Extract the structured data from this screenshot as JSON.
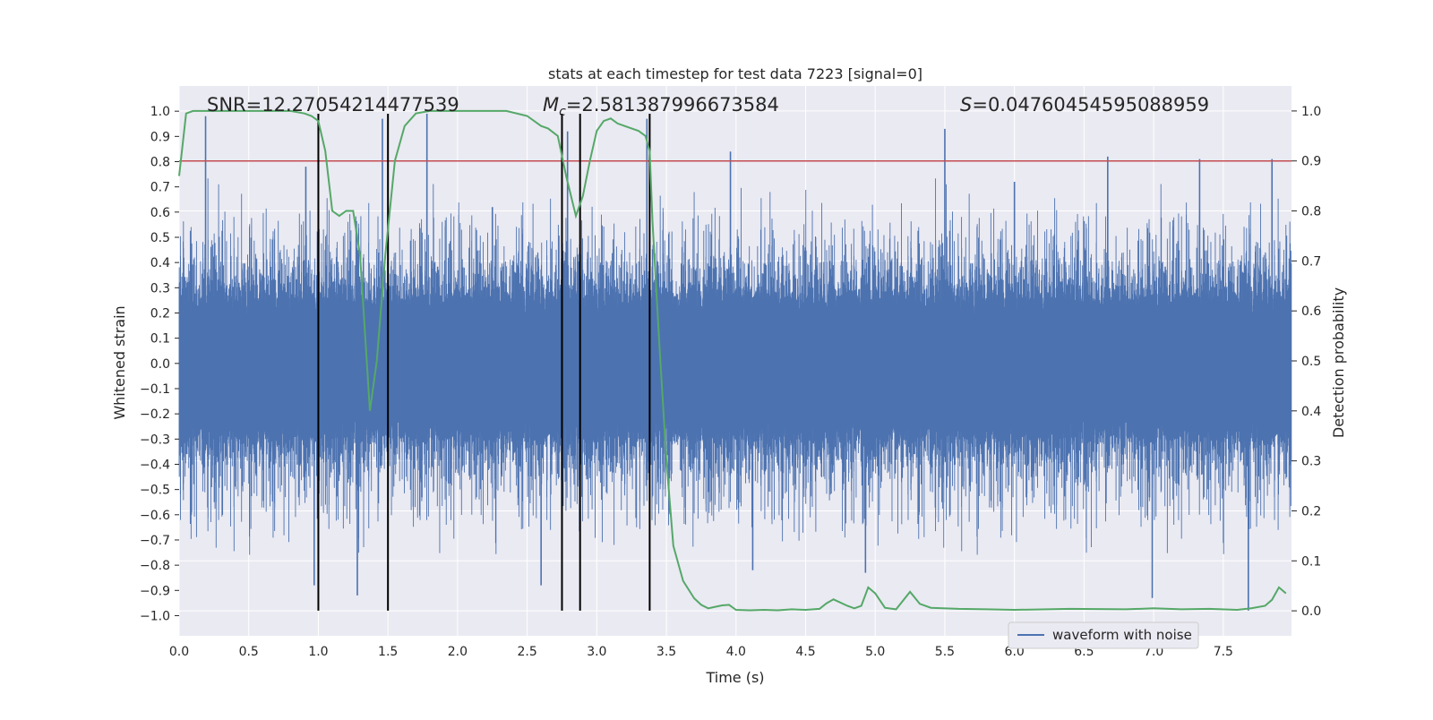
{
  "chart_data": {
    "type": "line",
    "title": "stats at each timestep for test data 7223 [signal=0]",
    "xlabel": "Time (s)",
    "ylabel": "Whitened strain",
    "y2label": "Detection probability",
    "xlim": [
      0.0,
      7.99
    ],
    "ylim": [
      -1.08,
      1.1
    ],
    "y2lim": [
      -0.05,
      1.05
    ],
    "xticks": [
      0.0,
      0.5,
      1.0,
      1.5,
      2.0,
      2.5,
      3.0,
      3.5,
      4.0,
      4.5,
      5.0,
      5.5,
      6.0,
      6.5,
      7.0,
      7.5
    ],
    "xtick_labels": [
      "0.0",
      "0.5",
      "1.0",
      "1.5",
      "2.0",
      "2.5",
      "3.0",
      "3.5",
      "4.0",
      "4.5",
      "5.0",
      "5.5",
      "6.0",
      "6.5",
      "7.0",
      "7.5"
    ],
    "yticks": [
      1.0,
      0.9,
      0.8,
      0.7,
      0.6,
      0.5,
      0.4,
      0.3,
      0.2,
      0.1,
      0.0,
      -0.1,
      -0.2,
      -0.3,
      -0.4,
      -0.5,
      -0.6,
      -0.7,
      -0.8,
      -0.9,
      -1.0
    ],
    "ytick_labels": [
      "1.0",
      "0.9",
      "0.8",
      "0.7",
      "0.6",
      "0.5",
      "0.4",
      "0.3",
      "0.2",
      "0.1",
      "0.0",
      "−0.1",
      "−0.2",
      "−0.3",
      "−0.4",
      "−0.5",
      "−0.6",
      "−0.7",
      "−0.8",
      "−0.9",
      "−1.0"
    ],
    "y2ticks": [
      1.0,
      0.9,
      0.8,
      0.7,
      0.6,
      0.5,
      0.4,
      0.3,
      0.2,
      0.1,
      0.0
    ],
    "y2tick_labels": [
      "1.0",
      "0.9",
      "0.8",
      "0.7",
      "0.6",
      "0.5",
      "0.4",
      "0.3",
      "0.2",
      "0.1",
      "0.0"
    ],
    "grid": true,
    "annotations": {
      "snr": "SNR=12.27054214477539",
      "mc_symbol": "M",
      "mc_sub": "c",
      "mc_value": "=2.581387996673584",
      "s_symbol": "S",
      "s_value": "=0.04760454595088959"
    },
    "legend": {
      "label": "waveform with noise",
      "position": "lower-right"
    },
    "colors": {
      "waveform": "#4c72b0",
      "probability": "#55a868",
      "threshold": "#c44e52",
      "markers": "#000000",
      "plot_bg": "#eaeaf2",
      "grid": "#ffffff",
      "text": "#262626"
    },
    "threshold": {
      "axis": "y2",
      "value": 0.9
    },
    "vertical_lines": [
      1.0,
      1.5,
      2.75,
      2.88,
      3.38
    ],
    "vertical_line_range": [
      -0.98,
      0.99
    ],
    "series": [
      {
        "name": "waveform with noise",
        "kind": "noise-band",
        "sample_count": 8000,
        "core_amplitude": 0.21,
        "envelope_high": 0.5,
        "envelope_low": -0.6,
        "spikes": [
          {
            "x": 0.19,
            "y": 0.98
          },
          {
            "x": 0.91,
            "y": 0.78
          },
          {
            "x": 0.97,
            "y": -0.88
          },
          {
            "x": 1.28,
            "y": -0.92
          },
          {
            "x": 1.46,
            "y": 0.97
          },
          {
            "x": 1.78,
            "y": 0.99
          },
          {
            "x": 2.25,
            "y": 0.62
          },
          {
            "x": 2.6,
            "y": -0.88
          },
          {
            "x": 2.79,
            "y": 0.92
          },
          {
            "x": 3.36,
            "y": 0.97
          },
          {
            "x": 4.12,
            "y": -0.82
          },
          {
            "x": 4.93,
            "y": -0.83
          },
          {
            "x": 5.5,
            "y": 0.93
          },
          {
            "x": 6.67,
            "y": 0.82
          },
          {
            "x": 6.99,
            "y": -0.93
          },
          {
            "x": 7.33,
            "y": 0.81
          },
          {
            "x": 7.68,
            "y": -0.98
          },
          {
            "x": 7.85,
            "y": 0.81
          },
          {
            "x": 6.0,
            "y": 0.72
          },
          {
            "x": 3.96,
            "y": 0.84
          }
        ]
      },
      {
        "name": "Detection probability",
        "axis": "y2",
        "x": [
          0.0,
          0.05,
          0.1,
          0.2,
          0.4,
          0.6,
          0.8,
          0.9,
          0.95,
          1.0,
          1.05,
          1.1,
          1.15,
          1.2,
          1.25,
          1.3,
          1.37,
          1.42,
          1.48,
          1.55,
          1.62,
          1.7,
          1.8,
          2.0,
          2.2,
          2.35,
          2.5,
          2.6,
          2.65,
          2.72,
          2.78,
          2.85,
          2.9,
          2.95,
          3.0,
          3.05,
          3.1,
          3.15,
          3.2,
          3.3,
          3.35,
          3.38,
          3.4,
          3.45,
          3.5,
          3.55,
          3.62,
          3.7,
          3.75,
          3.8,
          3.85,
          3.9,
          3.95,
          4.0,
          4.1,
          4.2,
          4.3,
          4.4,
          4.5,
          4.6,
          4.65,
          4.7,
          4.8,
          4.85,
          4.9,
          4.95,
          5.0,
          5.07,
          5.15,
          5.25,
          5.32,
          5.4,
          5.6,
          5.8,
          6.0,
          6.4,
          6.8,
          7.0,
          7.2,
          7.4,
          7.6,
          7.7,
          7.8,
          7.85,
          7.9,
          7.95
        ],
        "values": [
          0.87,
          0.995,
          1.0,
          1.0,
          1.0,
          1.0,
          1.0,
          0.995,
          0.99,
          0.98,
          0.92,
          0.8,
          0.79,
          0.8,
          0.8,
          0.71,
          0.4,
          0.5,
          0.71,
          0.9,
          0.97,
          0.995,
          1.0,
          1.0,
          1.0,
          1.0,
          0.99,
          0.97,
          0.965,
          0.95,
          0.87,
          0.79,
          0.83,
          0.9,
          0.96,
          0.98,
          0.985,
          0.975,
          0.97,
          0.96,
          0.95,
          0.92,
          0.78,
          0.53,
          0.3,
          0.13,
          0.06,
          0.025,
          0.012,
          0.005,
          0.008,
          0.011,
          0.012,
          0.002,
          0.001,
          0.002,
          0.001,
          0.003,
          0.002,
          0.004,
          0.015,
          0.023,
          0.01,
          0.005,
          0.01,
          0.047,
          0.035,
          0.006,
          0.003,
          0.038,
          0.014,
          0.006,
          0.004,
          0.003,
          0.002,
          0.004,
          0.003,
          0.005,
          0.003,
          0.004,
          0.002,
          0.005,
          0.01,
          0.022,
          0.047,
          0.035
        ]
      }
    ]
  }
}
